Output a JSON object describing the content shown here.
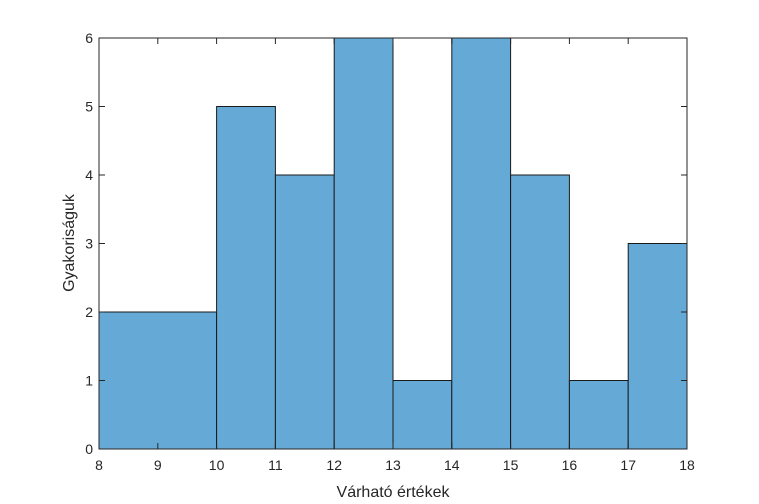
{
  "chart_data": {
    "type": "bar",
    "title": "",
    "xlabel": "Várható értékek",
    "ylabel": "Gyakoriságuk",
    "xlim": [
      8,
      18
    ],
    "ylim": [
      0,
      6
    ],
    "xticks": [
      "8",
      "9",
      "10",
      "11",
      "12",
      "13",
      "14",
      "15",
      "16",
      "17",
      "18"
    ],
    "yticks": [
      "0",
      "1",
      "2",
      "3",
      "4",
      "5",
      "6"
    ],
    "bins": [
      {
        "x_start": 8,
        "x_end": 10,
        "value": 2
      },
      {
        "x_start": 10,
        "x_end": 11,
        "value": 5
      },
      {
        "x_start": 11,
        "x_end": 12,
        "value": 4
      },
      {
        "x_start": 12,
        "x_end": 13,
        "value": 6
      },
      {
        "x_start": 13,
        "x_end": 14,
        "value": 1
      },
      {
        "x_start": 14,
        "x_end": 15,
        "value": 6
      },
      {
        "x_start": 15,
        "x_end": 16,
        "value": 4
      },
      {
        "x_start": 16,
        "x_end": 17,
        "value": 1
      },
      {
        "x_start": 17,
        "x_end": 18,
        "value": 3
      }
    ],
    "bar_color": "#65a9d7",
    "edge_color": "#1a1a1a",
    "grid": false,
    "legend": "none"
  }
}
